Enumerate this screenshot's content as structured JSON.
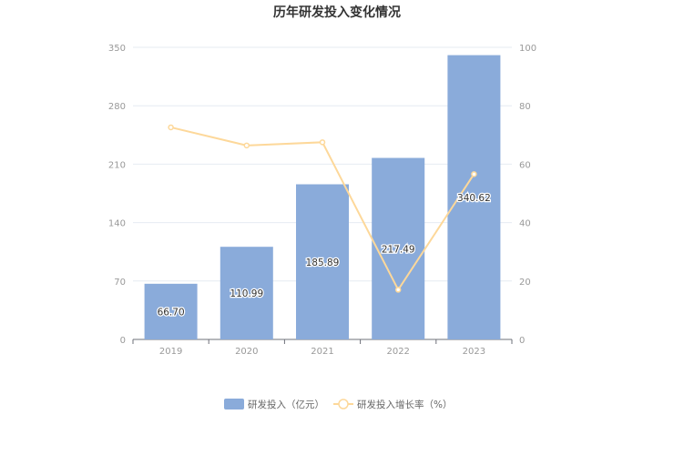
{
  "chart_data": {
    "type": "bar",
    "title": "历年研发投入变化情况",
    "categories": [
      "2019",
      "2020",
      "2021",
      "2022",
      "2023"
    ],
    "series": [
      {
        "name": "研发投入（亿元）",
        "type": "bar",
        "axis": "left",
        "color": "#8aabda",
        "values": [
          66.7,
          110.99,
          185.89,
          217.49,
          340.62
        ],
        "labels": [
          "66.70",
          "110.99",
          "185.89",
          "217.49",
          "340.62"
        ]
      },
      {
        "name": "研发投入增长率（%）",
        "type": "line",
        "axis": "right",
        "color": "#fdd89a",
        "values": [
          72.6,
          66.4,
          67.5,
          17.0,
          56.6
        ]
      }
    ],
    "y_left": {
      "min": 0,
      "max": 350,
      "ticks": [
        0,
        70,
        140,
        210,
        280,
        350
      ]
    },
    "y_right": {
      "min": 0,
      "max": 100,
      "ticks": [
        0,
        20,
        40,
        60,
        80,
        100
      ]
    },
    "grid": true,
    "legend": "bottom"
  }
}
